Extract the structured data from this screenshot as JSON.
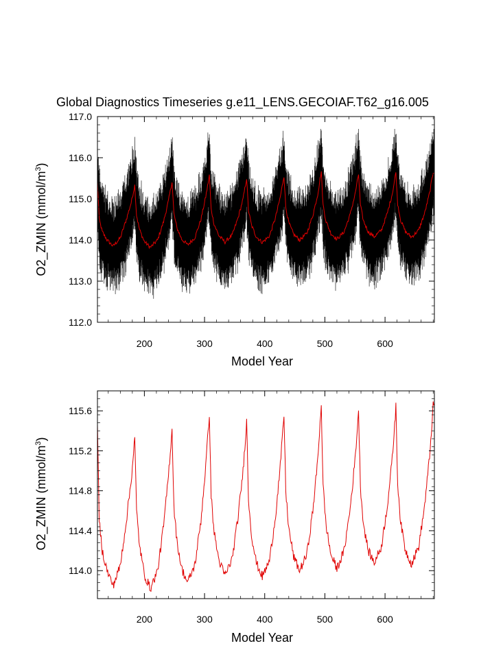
{
  "chart_data": [
    {
      "type": "line",
      "title": "Global Diagnostics Timeseries g.e11_LENS.GECOIAF.T62_g16.005",
      "xlabel": "Model Year",
      "ylabel_main": "O2_ZMIN (mmol/m",
      "ylabel_sup": "3",
      "ylabel_end": ")",
      "xlim": [
        122,
        682
      ],
      "ylim": [
        112.0,
        117.0
      ],
      "x_ticks": [
        200,
        300,
        400,
        500,
        600
      ],
      "x_tick_labels": [
        "200",
        "300",
        "400",
        "500",
        "600"
      ],
      "y_ticks": [
        112.0,
        113.0,
        114.0,
        115.0,
        116.0,
        117.0
      ],
      "y_tick_labels": [
        "112.0",
        "113.0",
        "114.0",
        "115.0",
        "116.0",
        "117.0"
      ],
      "grid": false,
      "legend": "none",
      "cycle": {
        "period_years": 62,
        "starts": [
          122,
          184,
          246,
          308,
          370,
          432,
          494,
          556,
          618,
          680
        ],
        "minimum_offset_years": 26,
        "minimum_values": [
          113.82,
          113.78,
          113.86,
          113.92,
          113.9,
          113.96,
          113.98,
          114.06,
          114.05
        ],
        "peak_values": [
          115.33,
          115.42,
          115.57,
          115.5,
          115.56,
          115.67,
          115.6,
          115.64,
          115.65,
          115.65
        ]
      },
      "series": [
        {
          "kind": "monthly-envelope",
          "color": "#000000",
          "amplitude_min": 1.0,
          "amplitude_max": 1.35
        },
        {
          "kind": "annual-mean",
          "color": "#e00000",
          "x": [
            122,
            125,
            130,
            138,
            148,
            160,
            170,
            178,
            184,
            187,
            192,
            200,
            210,
            222,
            232,
            240,
            246,
            249,
            254,
            262,
            272,
            284,
            294,
            302,
            308,
            311,
            316,
            324,
            334,
            346,
            356,
            364,
            370,
            373,
            378,
            386,
            396,
            408,
            418,
            426,
            432,
            435,
            440,
            448,
            458,
            470,
            480,
            488,
            494,
            497,
            502,
            510,
            520,
            532,
            542,
            550,
            556,
            559,
            564,
            572,
            582,
            594,
            604,
            612,
            618,
            621,
            626,
            634,
            644,
            656,
            666,
            674,
            680,
            682
          ],
          "y": [
            115.42,
            114.5,
            114.2,
            114.0,
            113.85,
            114.05,
            114.5,
            114.9,
            115.33,
            114.6,
            114.25,
            113.96,
            113.82,
            114.0,
            114.45,
            114.95,
            115.42,
            114.65,
            114.3,
            114.02,
            113.88,
            114.06,
            114.5,
            115.05,
            115.57,
            114.75,
            114.38,
            114.1,
            113.95,
            114.12,
            114.55,
            115.0,
            115.5,
            114.72,
            114.36,
            114.08,
            113.94,
            114.1,
            114.55,
            115.05,
            115.56,
            114.8,
            114.42,
            114.14,
            114.0,
            114.16,
            114.6,
            115.1,
            115.67,
            114.85,
            114.45,
            114.16,
            114.02,
            114.2,
            114.62,
            115.1,
            115.6,
            114.85,
            114.47,
            114.2,
            114.08,
            114.24,
            114.66,
            115.12,
            115.64,
            114.88,
            114.48,
            114.2,
            114.07,
            114.24,
            114.66,
            115.14,
            115.65,
            115.65
          ]
        }
      ]
    },
    {
      "type": "line",
      "title": "",
      "xlabel": "Model Year",
      "ylabel_main": "O2_ZMIN (mmol/m",
      "ylabel_sup": "3",
      "ylabel_end": ")",
      "xlim": [
        122,
        682
      ],
      "ylim": [
        113.72,
        115.8
      ],
      "x_ticks": [
        200,
        300,
        400,
        500,
        600
      ],
      "x_tick_labels": [
        "200",
        "300",
        "400",
        "500",
        "600"
      ],
      "y_ticks": [
        114.0,
        114.4,
        114.8,
        115.2,
        115.6
      ],
      "y_tick_labels": [
        "114.0",
        "114.4",
        "114.8",
        "115.2",
        "115.6"
      ],
      "grid": false,
      "legend": "none",
      "series": [
        {
          "kind": "annual-mean",
          "color": "#e00000",
          "x": [
            122,
            125,
            130,
            138,
            148,
            160,
            170,
            178,
            184,
            187,
            192,
            200,
            210,
            222,
            232,
            240,
            246,
            249,
            254,
            262,
            272,
            284,
            294,
            302,
            308,
            311,
            316,
            324,
            334,
            346,
            356,
            364,
            370,
            373,
            378,
            386,
            396,
            408,
            418,
            426,
            432,
            435,
            440,
            448,
            458,
            470,
            480,
            488,
            494,
            497,
            502,
            510,
            520,
            532,
            542,
            550,
            556,
            559,
            564,
            572,
            582,
            594,
            604,
            612,
            618,
            621,
            626,
            634,
            644,
            656,
            666,
            674,
            680,
            682
          ],
          "y": [
            115.42,
            114.5,
            114.2,
            114.0,
            113.85,
            114.05,
            114.5,
            114.9,
            115.33,
            114.6,
            114.25,
            113.96,
            113.82,
            114.0,
            114.45,
            114.95,
            115.42,
            114.65,
            114.3,
            114.02,
            113.88,
            114.06,
            114.5,
            115.05,
            115.57,
            114.75,
            114.38,
            114.1,
            113.95,
            114.12,
            114.55,
            115.0,
            115.5,
            114.72,
            114.36,
            114.08,
            113.94,
            114.1,
            114.55,
            115.05,
            115.56,
            114.8,
            114.42,
            114.14,
            114.0,
            114.16,
            114.6,
            115.1,
            115.67,
            114.85,
            114.45,
            114.16,
            114.02,
            114.2,
            114.62,
            115.1,
            115.6,
            114.85,
            114.47,
            114.2,
            114.08,
            114.24,
            114.66,
            115.12,
            115.64,
            114.88,
            114.48,
            114.2,
            114.07,
            114.24,
            114.66,
            115.14,
            115.65,
            115.65
          ]
        }
      ]
    }
  ]
}
